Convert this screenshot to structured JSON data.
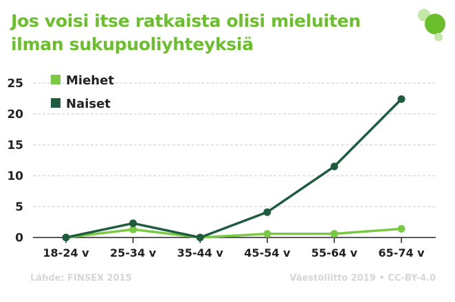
{
  "title": {
    "line1": "Jos voisi itse ratkaista olisi mieluiten",
    "line2": "ilman sukupuoliyhteyksiä"
  },
  "footer": {
    "source": "Lähde: FINSEX 2015",
    "credit": "Väestöliitto 2019 • CC-BY-4.0"
  },
  "logo": {
    "icon": "green-circles-logo"
  },
  "chart_data": {
    "type": "line",
    "categories": [
      "18-24 v",
      "25-34 v",
      "35-44 v",
      "45-54 v",
      "55-64 v",
      "65-74 v"
    ],
    "series": [
      {
        "name": "Miehet",
        "color": "#7ac943",
        "values": [
          0,
          1.3,
          0,
          0.6,
          0.6,
          1.4
        ]
      },
      {
        "name": "Naiset",
        "color": "#1e5c3f",
        "values": [
          0,
          2.3,
          0,
          4.1,
          11.5,
          22.4
        ]
      }
    ],
    "ylim": [
      0,
      25
    ],
    "yticks": [
      0,
      5,
      10,
      15,
      20,
      25
    ],
    "title": "",
    "xlabel": "",
    "ylabel": "",
    "grid": true,
    "legend": "top-left"
  }
}
